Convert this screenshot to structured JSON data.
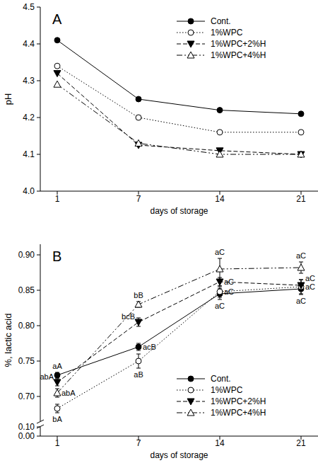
{
  "chart_data": [
    {
      "type": "line",
      "title": "A",
      "x_label": "days of storage",
      "y_label": "pH",
      "categories": [
        "1",
        "7",
        "14",
        "21"
      ],
      "ylim": [
        4.0,
        4.5
      ],
      "yticks": [
        {
          "value": 4.0,
          "label": "4.0"
        },
        4.1,
        4.2,
        4.3,
        4.4,
        4.5
      ],
      "grid": false,
      "legend": "upper right",
      "series": [
        {
          "name": "Cont.",
          "color": "#000000",
          "marker": "filled-circle",
          "line_style": "solid",
          "values": [
            4.41,
            4.25,
            4.22,
            4.21
          ]
        },
        {
          "name": "1%WPC",
          "color": "#000000",
          "marker": "open-circle",
          "line_style": "dotted",
          "values": [
            4.34,
            4.2,
            4.16,
            4.16
          ]
        },
        {
          "name": "1%WPC+2%H",
          "color": "#000000",
          "marker": "filled-triangle-down",
          "line_style": "dashed",
          "values": [
            4.32,
            4.125,
            4.11,
            4.1
          ]
        },
        {
          "name": "1%WPC+4%H",
          "color": "#000000",
          "marker": "open-triangle-up",
          "line_style": "dashdot",
          "values": [
            4.29,
            4.13,
            4.1,
            4.1
          ]
        }
      ]
    },
    {
      "type": "line",
      "title": "B",
      "x_label": "days of storage",
      "y_label": "%, lactic acid",
      "categories": [
        "1",
        "7",
        "14",
        "21"
      ],
      "ylim": [
        0.665,
        0.915
      ],
      "yticks": [
        {
          "value": 0.7,
          "label": "0.70"
        },
        0.75,
        {
          "value": 0.8,
          "label": "0.80"
        },
        0.85,
        {
          "value": 0.9,
          "label": "0.90"
        }
      ],
      "lower_ylim": [
        0,
        0.1
      ],
      "lower_yticks": [
        {
          "value": 0,
          "label": "0.00"
        },
        {
          "value": 0.1,
          "label": "0.10"
        }
      ],
      "grid": false,
      "legend": "lower right",
      "series": [
        {
          "name": "Cont.",
          "color": "#000000",
          "marker": "filled-circle",
          "line_style": "solid",
          "values": [
            0.73,
            0.77,
            0.845,
            0.852
          ],
          "errors": [
            0.004,
            0.005,
            0.008,
            0.008
          ],
          "annotations": [
            "aA",
            "acB",
            "aC",
            "aC"
          ]
        },
        {
          "name": "1%WPC",
          "color": "#000000",
          "marker": "open-circle",
          "line_style": "dotted",
          "values": [
            0.683,
            0.75,
            0.848,
            0.855
          ],
          "errors": [
            0.006,
            0.01,
            0.008,
            0.01
          ],
          "annotations": [
            "bA",
            "aB",
            "aC",
            "aC"
          ]
        },
        {
          "name": "1%WPC+2%H",
          "color": "#000000",
          "marker": "filled-triangle-down",
          "line_style": "dashed",
          "values": [
            0.72,
            0.805,
            0.862,
            0.857
          ],
          "errors": [
            0.005,
            0.006,
            0.006,
            0.008
          ],
          "annotations": [
            "abA",
            "bcB",
            "aC",
            "aC"
          ]
        },
        {
          "name": "1%WPC+4%H",
          "color": "#000000",
          "marker": "open-triangle-up",
          "line_style": "dashdot",
          "values": [
            0.705,
            0.83,
            0.88,
            0.882
          ],
          "errors": [
            0.006,
            0.004,
            0.015,
            0.008
          ],
          "annotations": [
            "abA",
            "bB",
            "aC",
            "aC"
          ]
        }
      ]
    }
  ]
}
